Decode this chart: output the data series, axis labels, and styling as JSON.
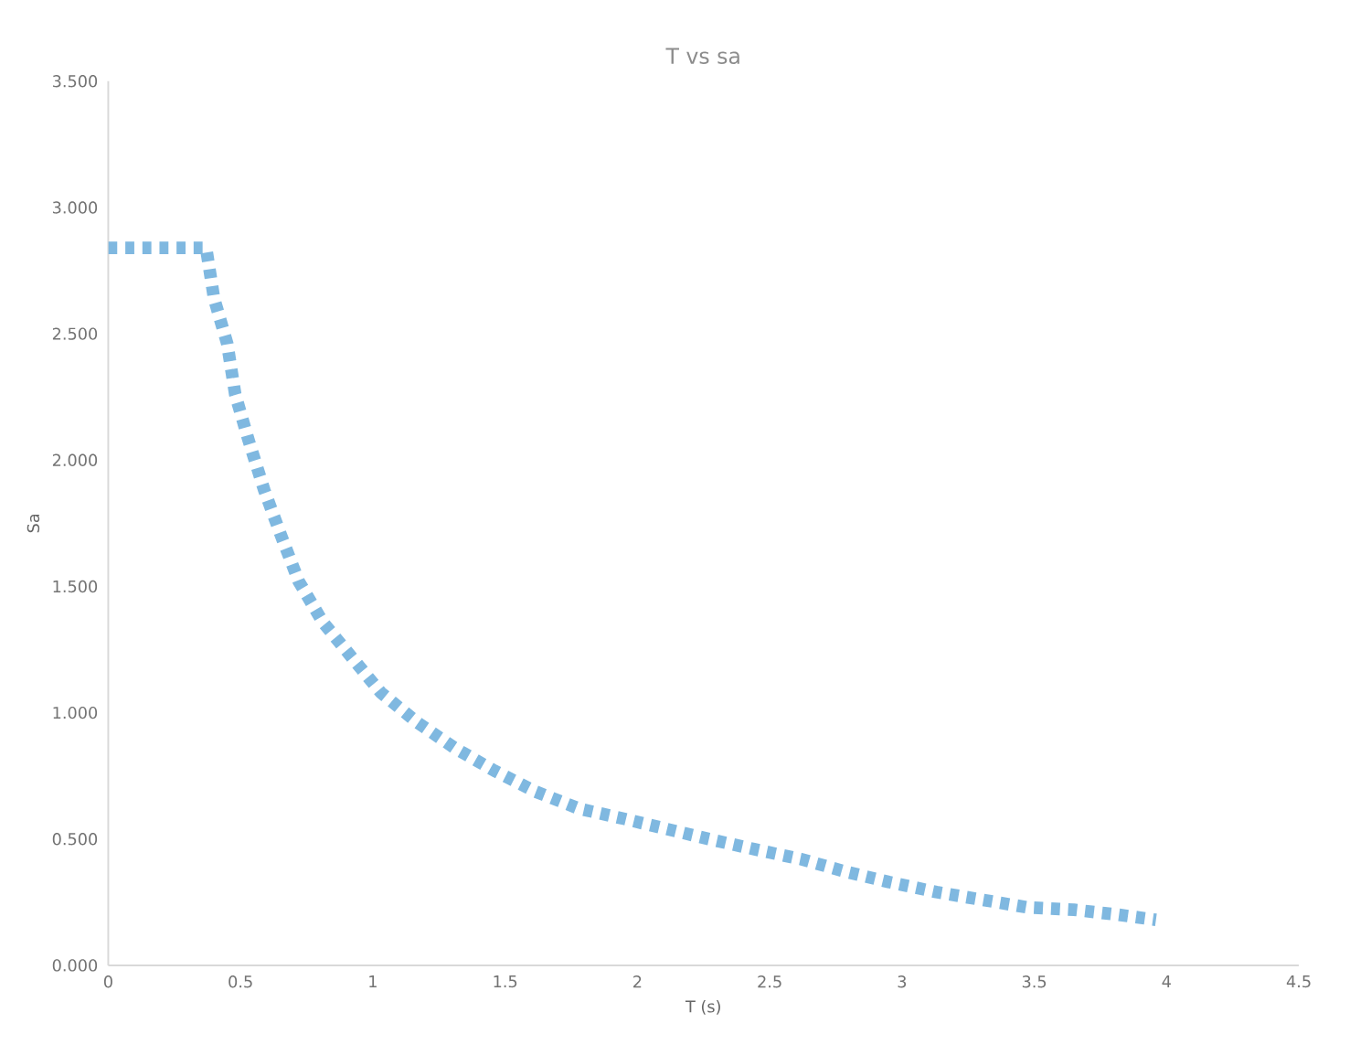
{
  "chart_data": {
    "type": "line",
    "title": "T vs sa",
    "xlabel": "T (s)",
    "ylabel": "Sa",
    "x": [
      0,
      0.19,
      0.37,
      0.4,
      0.45,
      0.48,
      0.53,
      0.59,
      0.65,
      0.72,
      0.81,
      0.92,
      1.03,
      1.17,
      1.31,
      1.46,
      1.61,
      1.78,
      1.95,
      2.11,
      2.27,
      2.44,
      2.62,
      2.79,
      2.95,
      3.13,
      3.3,
      3.47,
      3.65,
      3.82,
      3.96
    ],
    "series": [
      {
        "color": "#7fb8e0",
        "values": [
          2.84,
          2.84,
          2.84,
          2.64,
          2.46,
          2.26,
          2.08,
          1.88,
          1.71,
          1.52,
          1.36,
          1.22,
          1.08,
          0.96,
          0.86,
          0.77,
          0.69,
          0.62,
          0.58,
          0.54,
          0.5,
          0.46,
          0.42,
          0.37,
          0.33,
          0.29,
          0.26,
          0.23,
          0.22,
          0.2,
          0.18
        ]
      }
    ],
    "xlim": [
      0,
      4.5
    ],
    "xticks": [
      0,
      0.5,
      1,
      1.5,
      2,
      2.5,
      3,
      3.5,
      4,
      4.5
    ],
    "ylim": [
      0,
      3.5
    ],
    "yticks": [
      {
        "value": 0,
        "label": "0.000"
      },
      {
        "value": 0.5,
        "label": "0.500"
      },
      {
        "value": 1,
        "label": "1.000"
      },
      {
        "value": 1.5,
        "label": "1.500"
      },
      {
        "value": 2,
        "label": "2.000"
      },
      {
        "value": 2.5,
        "label": "2.500"
      },
      {
        "value": 3,
        "label": "3.000"
      },
      {
        "value": 3.5,
        "label": "3.500"
      }
    ],
    "line_style": "dotted",
    "grid": false,
    "marker": "none"
  }
}
